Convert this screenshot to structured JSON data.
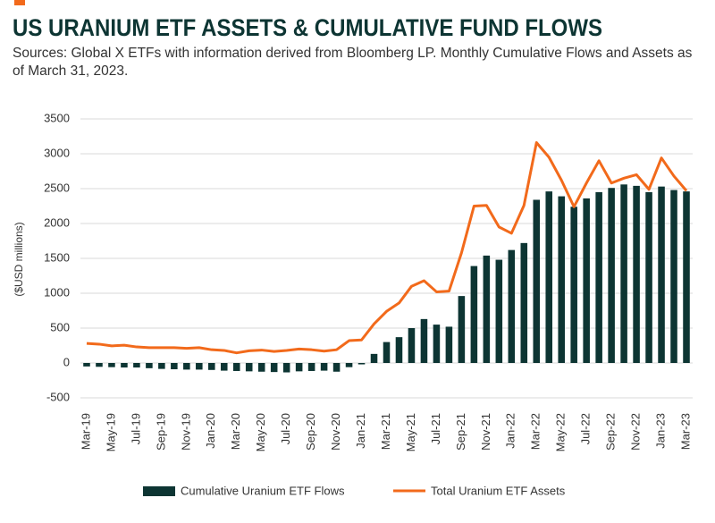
{
  "chart_data": {
    "type": "combo",
    "title": "US URANIUM ETF ASSETS & CUMULATIVE FUND FLOWS",
    "subtitle": "Sources: Global X ETFs with information derived from Bloomberg LP. Monthly Cumulative Flows and Assets as of March 31, 2023.",
    "y_label": "($USD millions)",
    "categories": [
      "Mar-19",
      null,
      "May-19",
      null,
      "Jul-19",
      null,
      "Sep-19",
      null,
      "Nov-19",
      null,
      "Jan-20",
      null,
      "Mar-20",
      null,
      "May-20",
      null,
      "Jul-20",
      null,
      "Sep-20",
      null,
      "Nov-20",
      null,
      "Jan-21",
      null,
      "Mar-21",
      null,
      "May-21",
      null,
      "Jul-21",
      null,
      "Sep-21",
      null,
      "Nov-21",
      null,
      "Jan-22",
      null,
      "Mar-22",
      null,
      "May-22",
      null,
      "Jul-22",
      null,
      "Sep-22",
      null,
      "Nov-22",
      null,
      "Jan-23",
      null,
      "Mar-23"
    ],
    "series": [
      {
        "name": "Cumulative Uranium ETF Flows",
        "type": "bar",
        "color": "#0d3533",
        "values": [
          -50,
          -55,
          -60,
          -65,
          -65,
          -75,
          -85,
          -90,
          -95,
          -95,
          -100,
          -110,
          -115,
          -120,
          -125,
          -130,
          -135,
          -120,
          -115,
          -110,
          -125,
          -60,
          -20,
          130,
          300,
          370,
          500,
          630,
          550,
          520,
          960,
          1390,
          1540,
          1480,
          1620,
          1720,
          2340,
          2460,
          2390,
          2240,
          2360,
          2450,
          2510,
          2560,
          2540,
          2450,
          2530,
          2480,
          2460
        ]
      },
      {
        "name": "Total Uranium ETF Assets",
        "type": "line",
        "color": "#f26a1b",
        "values": [
          280,
          270,
          245,
          255,
          230,
          220,
          220,
          220,
          210,
          220,
          190,
          180,
          145,
          175,
          185,
          165,
          180,
          200,
          190,
          170,
          190,
          320,
          330,
          560,
          740,
          860,
          1100,
          1180,
          1020,
          1030,
          1580,
          2250,
          2260,
          1950,
          1860,
          2260,
          3160,
          2950,
          2620,
          2240,
          2580,
          2900,
          2580,
          2650,
          2700,
          2490,
          2940,
          2680,
          2470
        ]
      }
    ],
    "ylim": [
      -500,
      3500
    ],
    "yticks": [
      -500,
      0,
      500,
      1000,
      1500,
      2000,
      2500,
      3000,
      3500
    ],
    "grid": true
  }
}
